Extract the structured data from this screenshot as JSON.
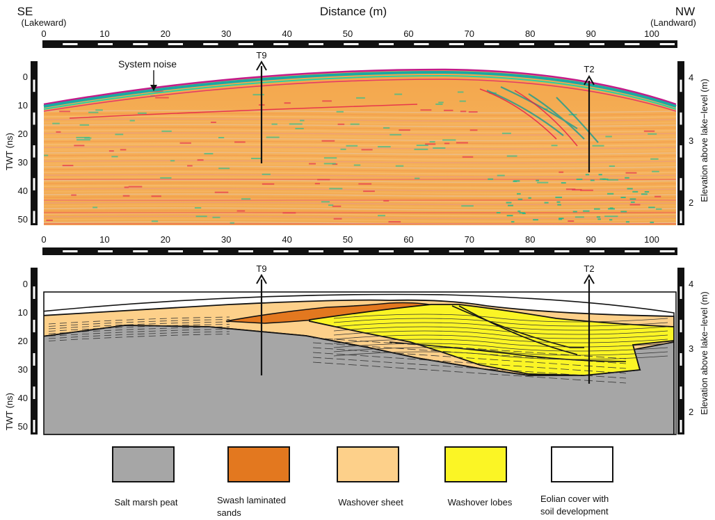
{
  "header": {
    "left_dir": "SE",
    "left_sub": "(Lakeward)",
    "right_dir": "NW",
    "right_sub": "(Landward)",
    "title": "Distance (m)"
  },
  "distance_ticks": [
    "0",
    "10",
    "20",
    "30",
    "40",
    "50",
    "60",
    "70",
    "80",
    "90",
    "100"
  ],
  "twt_ticks": [
    "0",
    "10",
    "20",
    "30",
    "40",
    "50"
  ],
  "elev_ticks": [
    "4",
    "3",
    "2"
  ],
  "axis": {
    "twt_label": "TWT (ns)",
    "elev_label": "Elevation above lake−level (m)"
  },
  "gpr": {
    "annotation": "System noise",
    "markers": [
      "T9",
      "T2"
    ]
  },
  "interpretation": {
    "markers": [
      "T9",
      "T2"
    ]
  },
  "legend": [
    {
      "label": "Salt marsh peat",
      "color": "#a6a6a6"
    },
    {
      "label": "Swash  laminated sands",
      "line1": "Swash   laminated",
      "line2": "sands",
      "color": "#e3781f"
    },
    {
      "label": "Washover sheet",
      "color": "#fdd08a"
    },
    {
      "label": "Washover lobes",
      "color": "#fbf525"
    },
    {
      "label": "Eolian cover with soil development",
      "line1": "Eolian cover with",
      "line2": "soil development",
      "color": "#ffffff"
    }
  ]
}
